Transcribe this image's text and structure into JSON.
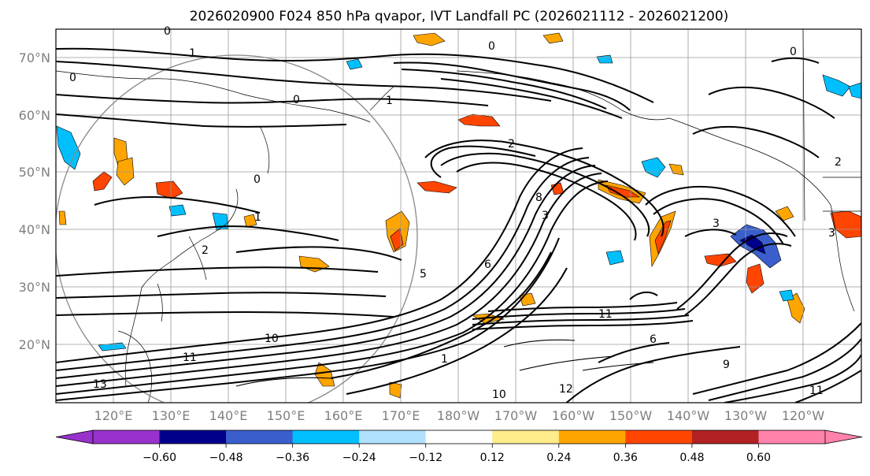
{
  "title": "2026020900 F024 850 hPa qvapor, IVT Landfall PC (2026021112 - 2026021200)",
  "lat_labels": [
    "70°N",
    "60°N",
    "50°N",
    "40°N",
    "30°N",
    "20°N"
  ],
  "lon_labels": [
    "120°E",
    "130°E",
    "140°E",
    "150°E",
    "160°E",
    "170°E",
    "180°W",
    "170°W",
    "160°W",
    "150°W",
    "140°W",
    "130°W",
    "120°W"
  ],
  "colorbar": {
    "colors": [
      "#9932cc",
      "#00008b",
      "#3a5fcd",
      "#00bfff",
      "#b0e2ff",
      "#ffffff",
      "#ffec8b",
      "#ffa500",
      "#ff4500",
      "#b22222",
      "#ff82ab"
    ],
    "tick_labels": [
      "−0.60",
      "−0.48",
      "−0.36",
      "−0.24",
      "−0.12",
      "0.12",
      "0.24",
      "0.36",
      "0.48",
      "0.60"
    ]
  },
  "contour_labels": [
    "0",
    "1",
    "0",
    "0",
    "1",
    "0",
    "2",
    "0",
    "1",
    "0",
    "2",
    "3",
    "3",
    "5",
    "6",
    "8",
    "10",
    "11",
    "13",
    "11",
    "12",
    "10",
    "9",
    "11",
    "6",
    "3",
    "2",
    "1"
  ]
}
